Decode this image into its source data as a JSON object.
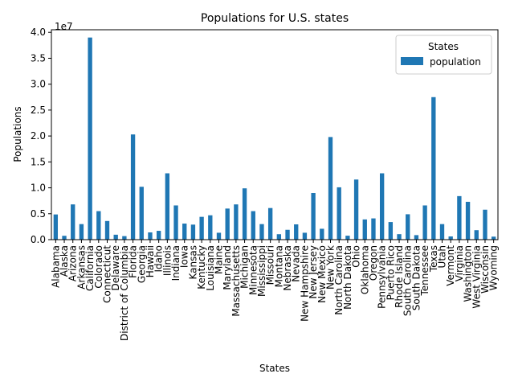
{
  "chart_data": {
    "type": "bar",
    "title": "Populations for U.S. states",
    "xlabel": "States",
    "ylabel": "Populations",
    "y_offset_label": "1e7",
    "ylim": [
      0,
      40500000
    ],
    "yticks": [
      0,
      5000000,
      10000000,
      15000000,
      20000000,
      25000000,
      30000000,
      35000000,
      40000000
    ],
    "ytick_labels": [
      "0.0",
      "0.5",
      "1.0",
      "1.5",
      "2.0",
      "2.5",
      "3.0",
      "3.5",
      "4.0"
    ],
    "grid": false,
    "legend": {
      "title": "States",
      "placement": "top-right",
      "entries": [
        "population"
      ]
    },
    "bar_color": "#1f77b4",
    "categories": [
      "Alabama",
      "Alaska",
      "Arizona",
      "Arkansas",
      "California",
      "Colorado",
      "Connecticut",
      "Delaware",
      "District of Columbia",
      "Florida",
      "Georgia",
      "Hawaii",
      "Idaho",
      "Illinois",
      "Indiana",
      "Iowa",
      "Kansas",
      "Kentucky",
      "Louisiana",
      "Maine",
      "Maryland",
      "Massachusetts",
      "Michigan",
      "Minnesota",
      "Mississippi",
      "Missouri",
      "Montana",
      "Nebraska",
      "Nevada",
      "New Hampshire",
      "New Jersey",
      "New Mexico",
      "New York",
      "North Carolina",
      "North Dakota",
      "Ohio",
      "Oklahoma",
      "Oregon",
      "Pennsylvania",
      "Puerto Rico",
      "Rhode Island",
      "South Carolina",
      "South Dakota",
      "Tennessee",
      "Texas",
      "Utah",
      "Vermont",
      "Virginia",
      "Washington",
      "West Virginia",
      "Wisconsin",
      "Wyoming"
    ],
    "series": [
      {
        "name": "population",
        "values": [
          4860000,
          740000,
          6800000,
          3000000,
          39000000,
          5500000,
          3600000,
          950000,
          680000,
          20300000,
          10200000,
          1400000,
          1700000,
          12800000,
          6600000,
          3100000,
          2900000,
          4400000,
          4700000,
          1330000,
          6000000,
          6800000,
          9900000,
          5500000,
          3000000,
          6100000,
          1050000,
          1900000,
          2950000,
          1330000,
          9000000,
          2100000,
          19800000,
          10100000,
          760000,
          11600000,
          3900000,
          4100000,
          12800000,
          3400000,
          1060000,
          4900000,
          870000,
          6600000,
          27500000,
          3000000,
          620000,
          8400000,
          7300000,
          1830000,
          5780000,
          580000
        ]
      }
    ]
  }
}
